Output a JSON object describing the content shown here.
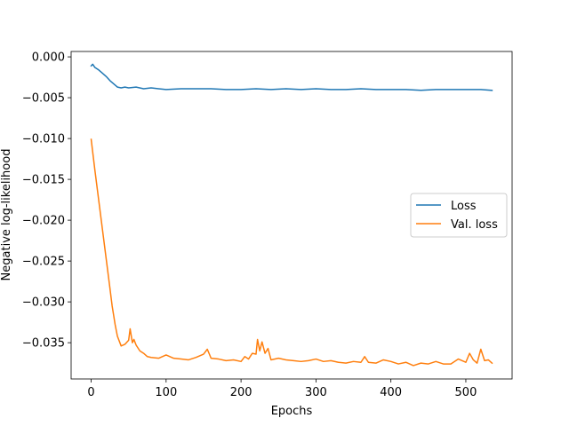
{
  "chart_data": {
    "type": "line",
    "title": "",
    "xlabel": "Epochs",
    "ylabel": "Negative log-likelihood",
    "xlim": [
      -26.75,
      561.75
    ],
    "ylim": [
      -0.03944,
      0.00066
    ],
    "xticks": [
      0,
      100,
      200,
      300,
      400,
      500
    ],
    "xtick_labels": [
      "0",
      "100",
      "200",
      "300",
      "400",
      "500"
    ],
    "yticks": [
      0.0,
      -0.005,
      -0.01,
      -0.015,
      -0.02,
      -0.025,
      -0.03,
      -0.035
    ],
    "ytick_labels": [
      "0.000",
      "−0.005",
      "−0.010",
      "−0.015",
      "−0.020",
      "−0.025",
      "−0.030",
      "−0.035"
    ],
    "grid": false,
    "legend_position": "center-right",
    "series": [
      {
        "name": "Loss",
        "color": "#1f77b4",
        "x": [
          0,
          2,
          5,
          10,
          15,
          20,
          25,
          30,
          35,
          40,
          45,
          50,
          60,
          70,
          80,
          90,
          100,
          120,
          140,
          160,
          180,
          200,
          220,
          240,
          260,
          280,
          300,
          320,
          340,
          360,
          380,
          400,
          420,
          440,
          460,
          480,
          500,
          520,
          535
        ],
        "y": [
          -0.0011,
          -0.0009,
          -0.0013,
          -0.0016,
          -0.002,
          -0.0024,
          -0.0029,
          -0.0033,
          -0.0037,
          -0.0038,
          -0.0037,
          -0.0038,
          -0.0037,
          -0.0039,
          -0.0038,
          -0.0039,
          -0.004,
          -0.0039,
          -0.0039,
          -0.0039,
          -0.004,
          -0.004,
          -0.0039,
          -0.004,
          -0.0039,
          -0.004,
          -0.0039,
          -0.004,
          -0.004,
          -0.0039,
          -0.004,
          -0.004,
          -0.004,
          -0.0041,
          -0.004,
          -0.004,
          -0.004,
          -0.004,
          -0.0041
        ]
      },
      {
        "name": "Val. loss",
        "color": "#ff7f0e",
        "x": [
          0,
          5,
          10,
          15,
          20,
          25,
          28,
          32,
          35,
          40,
          45,
          50,
          52,
          55,
          57,
          60,
          65,
          70,
          75,
          80,
          90,
          100,
          110,
          120,
          130,
          140,
          150,
          155,
          160,
          170,
          180,
          190,
          200,
          205,
          210,
          215,
          220,
          222,
          225,
          228,
          232,
          236,
          240,
          250,
          260,
          270,
          280,
          290,
          300,
          310,
          320,
          330,
          340,
          350,
          360,
          365,
          370,
          380,
          390,
          400,
          410,
          420,
          430,
          440,
          450,
          460,
          470,
          480,
          490,
          500,
          505,
          510,
          515,
          520,
          525,
          530,
          535
        ],
        "y": [
          -0.0101,
          -0.0139,
          -0.0175,
          -0.0211,
          -0.0247,
          -0.0283,
          -0.0305,
          -0.0328,
          -0.0342,
          -0.0354,
          -0.0352,
          -0.0347,
          -0.0333,
          -0.035,
          -0.0346,
          -0.0353,
          -0.036,
          -0.0363,
          -0.0367,
          -0.0368,
          -0.0369,
          -0.0365,
          -0.0369,
          -0.037,
          -0.0371,
          -0.0368,
          -0.0364,
          -0.0358,
          -0.0369,
          -0.037,
          -0.0372,
          -0.0371,
          -0.0373,
          -0.0367,
          -0.037,
          -0.0363,
          -0.0364,
          -0.0346,
          -0.036,
          -0.0349,
          -0.0363,
          -0.0357,
          -0.0371,
          -0.0369,
          -0.0371,
          -0.0372,
          -0.0373,
          -0.0372,
          -0.037,
          -0.0373,
          -0.0372,
          -0.0374,
          -0.0375,
          -0.0373,
          -0.0374,
          -0.0367,
          -0.0374,
          -0.0375,
          -0.0371,
          -0.0373,
          -0.0376,
          -0.0374,
          -0.0378,
          -0.0375,
          -0.0376,
          -0.0373,
          -0.0376,
          -0.0376,
          -0.037,
          -0.0374,
          -0.0363,
          -0.0371,
          -0.0375,
          -0.0358,
          -0.0372,
          -0.0371,
          -0.0375
        ]
      }
    ]
  }
}
